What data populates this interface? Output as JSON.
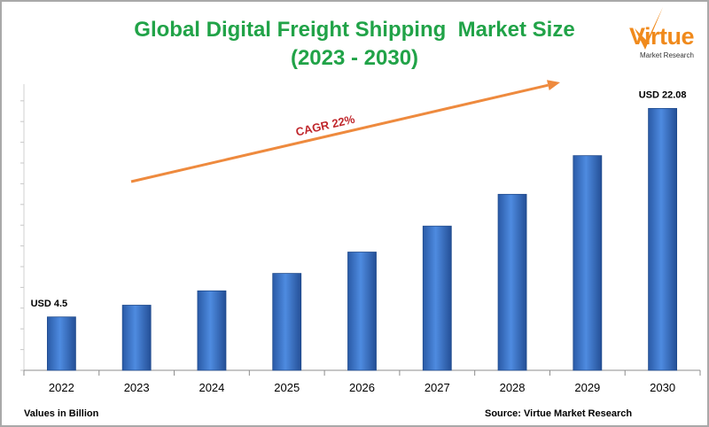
{
  "chart_data": {
    "type": "bar",
    "title_line1": "Global Digital Freight Shipping  Market Size",
    "title_line2": "(2023 - 2030)",
    "categories": [
      "2022",
      "2023",
      "2024",
      "2025",
      "2026",
      "2027",
      "2028",
      "2029",
      "2030"
    ],
    "values": [
      4.5,
      5.49,
      6.7,
      8.17,
      9.97,
      12.16,
      14.84,
      18.1,
      22.08
    ],
    "value_unit_note": "Values in Billion",
    "data_labels": [
      {
        "index": 0,
        "text": "USD 4.5"
      },
      {
        "index": 8,
        "text": "USD 22.08"
      }
    ],
    "annotation": "CAGR 22%",
    "source": "Source: Virtue Market Research",
    "bar_color": "#3b76c8",
    "annotation_color": "#c0282d",
    "arrow_color": "#ee8a3e",
    "title_color": "#21a348",
    "grid": false,
    "legend": "none"
  },
  "logo": {
    "word": "Virtue",
    "subtitle": "Market Research"
  }
}
